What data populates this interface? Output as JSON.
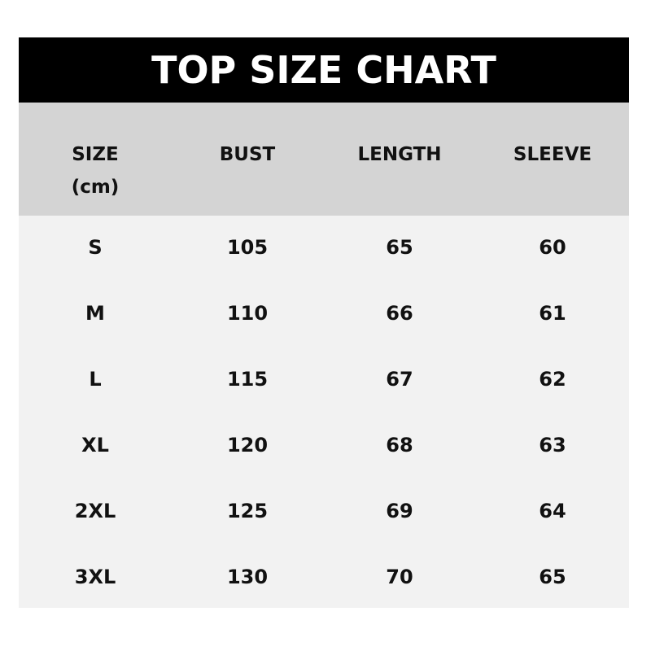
{
  "title": "TOP SIZE CHART",
  "columns": [
    {
      "line1": "SIZE",
      "line2": "(cm)"
    },
    {
      "line1": "BUST"
    },
    {
      "line1": "LENGTH"
    },
    {
      "line1": "SLEEVE"
    }
  ],
  "rows": [
    [
      "S",
      "105",
      "65",
      "60"
    ],
    [
      "M",
      "110",
      "66",
      "61"
    ],
    [
      "L",
      "115",
      "67",
      "62"
    ],
    [
      "XL",
      "120",
      "68",
      "63"
    ],
    [
      "2XL",
      "125",
      "69",
      "64"
    ],
    [
      "3XL",
      "130",
      "70",
      "65"
    ]
  ]
}
